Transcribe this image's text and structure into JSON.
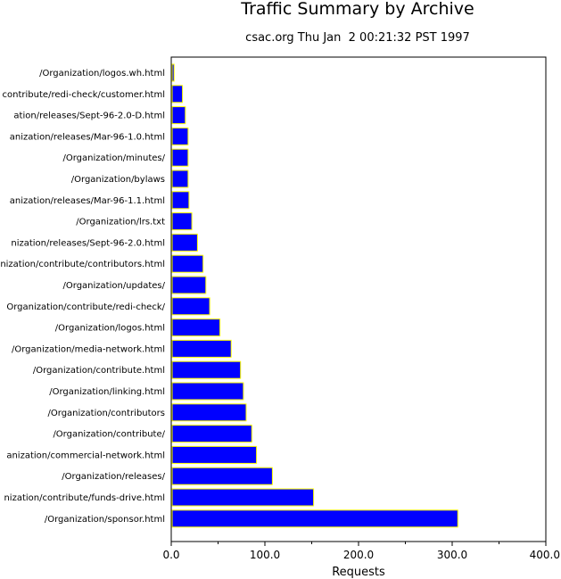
{
  "chart_data": {
    "type": "bar",
    "orientation": "horizontal",
    "title": "Traffic Summary by Archive",
    "subtitle": "csac.org Thu Jan  2 00:21:32 PST 1997",
    "xlabel": "Requests",
    "ylabel": "",
    "xlim": [
      0,
      400
    ],
    "xticks": [
      "0.0",
      "100.0",
      "200.0",
      "300.0",
      "400.0"
    ],
    "grid": false,
    "colors": {
      "bar_fill": "#0000ff",
      "bar_edge": "#ffff00",
      "axis": "#000000"
    },
    "categories": [
      "/Organization/logos.wh.html",
      "contribute/redi-check/customer.html",
      "ation/releases/Sept-96-2.0-D.html",
      "anization/releases/Mar-96-1.0.html",
      "/Organization/minutes/",
      "/Organization/bylaws",
      "anization/releases/Mar-96-1.1.html",
      "/Organization/lrs.txt",
      "nization/releases/Sept-96-2.0.html",
      "nization/contribute/contributors.html",
      "/Organization/updates/",
      "Organization/contribute/redi-check/",
      "/Organization/logos.html",
      "/Organization/media-network.html",
      "/Organization/contribute.html",
      "/Organization/linking.html",
      "/Organization/contributors",
      "/Organization/contribute/",
      "anization/commercial-network.html",
      "/Organization/releases/",
      "nization/contribute/funds-drive.html",
      "/Organization/sponsor.html"
    ],
    "values": [
      3,
      12,
      15,
      18,
      18,
      18,
      19,
      22,
      28,
      34,
      37,
      41,
      52,
      64,
      74,
      77,
      80,
      86,
      91,
      108,
      152,
      306
    ]
  }
}
